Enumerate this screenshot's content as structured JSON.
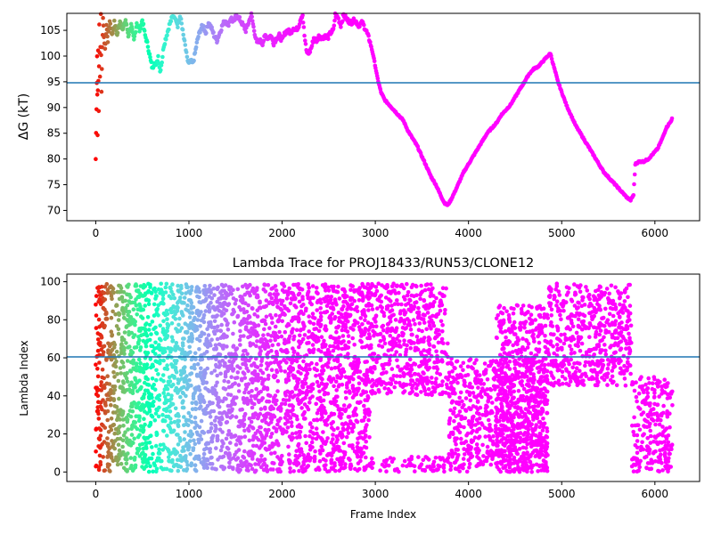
{
  "chart_data": [
    {
      "type": "scatter",
      "title": "",
      "xlabel": "",
      "ylabel": "ΔG (kT)",
      "xlim": [
        -310,
        6480
      ],
      "ylim": [
        68,
        108.3
      ],
      "xticks": [
        0,
        1000,
        2000,
        3000,
        4000,
        5000,
        6000
      ],
      "yticks": [
        70,
        75,
        80,
        85,
        90,
        95,
        100,
        105
      ],
      "hline": 94.8,
      "hline_color": "#1f77b4",
      "colormap": "rainbow, colored by frame index (red at start to violet at end)",
      "grid": false,
      "legend": "none",
      "trace_points": [
        [
          0,
          80
        ],
        [
          8,
          90
        ],
        [
          14,
          100
        ],
        [
          20,
          85
        ],
        [
          26,
          101
        ],
        [
          32,
          89.5
        ],
        [
          38,
          106
        ],
        [
          46,
          96
        ],
        [
          55,
          108
        ],
        [
          62,
          93
        ],
        [
          70,
          102
        ],
        [
          78,
          107
        ],
        [
          88,
          104
        ],
        [
          100,
          101
        ],
        [
          115,
          106
        ],
        [
          130,
          103
        ],
        [
          150,
          107
        ],
        [
          175,
          104
        ],
        [
          200,
          106.5
        ],
        [
          230,
          104
        ],
        [
          260,
          107
        ],
        [
          290,
          105
        ],
        [
          320,
          107
        ],
        [
          350,
          104
        ],
        [
          380,
          106
        ],
        [
          410,
          103
        ],
        [
          440,
          106.5
        ],
        [
          470,
          105
        ],
        [
          500,
          107
        ],
        [
          530,
          104
        ],
        [
          560,
          102
        ],
        [
          590,
          99
        ],
        [
          610,
          97.5
        ],
        [
          630,
          99
        ],
        [
          650,
          98
        ],
        [
          670,
          100
        ],
        [
          690,
          97
        ],
        [
          710,
          99
        ],
        [
          730,
          102
        ],
        [
          760,
          104
        ],
        [
          790,
          106
        ],
        [
          820,
          107.5
        ],
        [
          850,
          108
        ],
        [
          880,
          106
        ],
        [
          910,
          108
        ],
        [
          940,
          104
        ],
        [
          960,
          102
        ],
        [
          980,
          99.5
        ],
        [
          1000,
          98.5
        ],
        [
          1020,
          99
        ],
        [
          1040,
          98.5
        ],
        [
          1060,
          100
        ],
        [
          1090,
          103
        ],
        [
          1120,
          105
        ],
        [
          1150,
          106
        ],
        [
          1180,
          104.5
        ],
        [
          1210,
          106.5
        ],
        [
          1240,
          105.5
        ],
        [
          1270,
          104
        ],
        [
          1300,
          103
        ],
        [
          1330,
          104.5
        ],
        [
          1360,
          106
        ],
        [
          1390,
          107
        ],
        [
          1420,
          106
        ],
        [
          1450,
          107.5
        ],
        [
          1480,
          106.5
        ],
        [
          1510,
          108
        ],
        [
          1550,
          107
        ],
        [
          1580,
          106
        ],
        [
          1610,
          105
        ],
        [
          1640,
          106.5
        ],
        [
          1670,
          108
        ],
        [
          1700,
          105
        ],
        [
          1730,
          102.5
        ],
        [
          1760,
          103
        ],
        [
          1790,
          102.5
        ],
        [
          1820,
          104
        ],
        [
          1850,
          103.5
        ],
        [
          1880,
          104
        ],
        [
          1910,
          102.5
        ],
        [
          1940,
          103.5
        ],
        [
          1970,
          104
        ],
        [
          2000,
          103
        ],
        [
          2030,
          104.5
        ],
        [
          2060,
          105
        ],
        [
          2090,
          104.5
        ],
        [
          2120,
          105.5
        ],
        [
          2150,
          105
        ],
        [
          2180,
          106
        ],
        [
          2200,
          107.5
        ],
        [
          2220,
          108
        ],
        [
          2240,
          104
        ],
        [
          2260,
          101
        ],
        [
          2280,
          100.5
        ],
        [
          2300,
          101
        ],
        [
          2320,
          102
        ],
        [
          2340,
          103.5
        ],
        [
          2370,
          103
        ],
        [
          2400,
          104
        ],
        [
          2430,
          103.5
        ],
        [
          2460,
          104
        ],
        [
          2490,
          103.5
        ],
        [
          2520,
          104.5
        ],
        [
          2550,
          105
        ],
        [
          2570,
          108
        ],
        [
          2600,
          107.5
        ],
        [
          2630,
          106
        ],
        [
          2660,
          108
        ],
        [
          2700,
          107
        ],
        [
          2740,
          106.5
        ],
        [
          2780,
          107
        ],
        [
          2820,
          106
        ],
        [
          2860,
          106.5
        ],
        [
          2900,
          105
        ],
        [
          2940,
          103
        ],
        [
          2980,
          100
        ],
        [
          3020,
          96
        ],
        [
          3060,
          93
        ],
        [
          3100,
          91.5
        ],
        [
          3150,
          90.5
        ],
        [
          3200,
          89.5
        ],
        [
          3250,
          88.5
        ],
        [
          3300,
          87.5
        ],
        [
          3350,
          85.5
        ],
        [
          3400,
          84
        ],
        [
          3450,
          82.5
        ],
        [
          3500,
          80.5
        ],
        [
          3550,
          78.5
        ],
        [
          3600,
          76.5
        ],
        [
          3650,
          75
        ],
        [
          3700,
          73
        ],
        [
          3740,
          71.5
        ],
        [
          3775,
          71
        ],
        [
          3810,
          72
        ],
        [
          3850,
          73.5
        ],
        [
          3900,
          75.5
        ],
        [
          3950,
          77.5
        ],
        [
          4000,
          79
        ],
        [
          4050,
          80.5
        ],
        [
          4100,
          82
        ],
        [
          4150,
          83.5
        ],
        [
          4200,
          85
        ],
        [
          4250,
          86
        ],
        [
          4300,
          87
        ],
        [
          4350,
          88.5
        ],
        [
          4400,
          89.5
        ],
        [
          4450,
          90.5
        ],
        [
          4500,
          92
        ],
        [
          4550,
          93.5
        ],
        [
          4600,
          95
        ],
        [
          4650,
          96.5
        ],
        [
          4700,
          97.5
        ],
        [
          4750,
          98
        ],
        [
          4800,
          99
        ],
        [
          4850,
          100
        ],
        [
          4880,
          100.5
        ],
        [
          4900,
          99
        ],
        [
          4930,
          97
        ],
        [
          4960,
          95
        ],
        [
          5000,
          93
        ],
        [
          5050,
          90.5
        ],
        [
          5100,
          88.5
        ],
        [
          5150,
          86.5
        ],
        [
          5200,
          85
        ],
        [
          5250,
          83.5
        ],
        [
          5300,
          82
        ],
        [
          5350,
          80.5
        ],
        [
          5400,
          79
        ],
        [
          5450,
          77.5
        ],
        [
          5500,
          76.5
        ],
        [
          5550,
          75.5
        ],
        [
          5600,
          74.5
        ],
        [
          5650,
          73.5
        ],
        [
          5700,
          72.5
        ],
        [
          5740,
          72
        ],
        [
          5770,
          73
        ],
        [
          5790,
          79
        ],
        [
          5830,
          79.5
        ],
        [
          5880,
          79.5
        ],
        [
          5930,
          80
        ],
        [
          5980,
          81
        ],
        [
          6030,
          82
        ],
        [
          6080,
          84
        ],
        [
          6120,
          86
        ],
        [
          6160,
          87
        ],
        [
          6190,
          88
        ]
      ]
    },
    {
      "type": "scatter",
      "title": "Lambda Trace for PROJ18433/RUN53/CLONE12",
      "xlabel": "Frame Index",
      "ylabel": "Lambda Index",
      "xlim": [
        -310,
        6480
      ],
      "ylim": [
        -5,
        104
      ],
      "xticks": [
        0,
        1000,
        2000,
        3000,
        4000,
        5000,
        6000
      ],
      "yticks": [
        0,
        20,
        40,
        60,
        80,
        100
      ],
      "hline": 60.5,
      "hline_color": "#1f77b4",
      "colormap": "rainbow, colored by frame index (red at start to violet at end)",
      "grid": false,
      "legend": "none",
      "scatter_bands": [
        {
          "x_start": 0,
          "x_end": 2950,
          "y_min": 0,
          "y_max": 99
        },
        {
          "x_start": 2950,
          "x_end": 3780,
          "y_min": 40,
          "y_max": 99
        },
        {
          "x_start": 2950,
          "x_end": 3780,
          "y_min": 0,
          "y_max": 8
        },
        {
          "x_start": 3780,
          "x_end": 4850,
          "y_min": 0,
          "y_max": 60
        },
        {
          "x_start": 4300,
          "x_end": 4850,
          "y_min": 0,
          "y_max": 88
        },
        {
          "x_start": 4850,
          "x_end": 5750,
          "y_min": 45,
          "y_max": 99
        },
        {
          "x_start": 5750,
          "x_end": 6190,
          "y_min": 0,
          "y_max": 50
        }
      ]
    }
  ]
}
